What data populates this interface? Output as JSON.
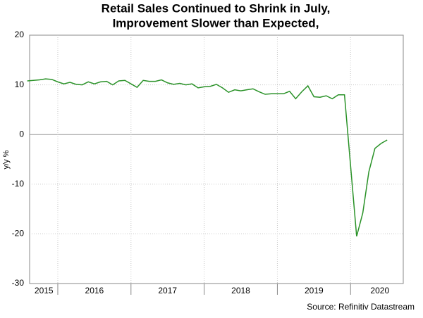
{
  "chart_data": {
    "type": "line",
    "title_lines": [
      "Retail Sales Continued to Shrink in July,",
      "Improvement Slower than Expected,"
    ],
    "ylabel": "y/y %",
    "source": "Source: Refinitiv Datastream",
    "color": "#2a9228",
    "x": [
      2015.583,
      2015.667,
      2015.75,
      2015.833,
      2015.917,
      2016.0,
      2016.083,
      2016.167,
      2016.25,
      2016.333,
      2016.417,
      2016.5,
      2016.583,
      2016.667,
      2016.75,
      2016.833,
      2016.917,
      2017.0,
      2017.083,
      2017.167,
      2017.25,
      2017.333,
      2017.417,
      2017.5,
      2017.583,
      2017.667,
      2017.75,
      2017.833,
      2017.917,
      2018.0,
      2018.083,
      2018.167,
      2018.25,
      2018.333,
      2018.417,
      2018.5,
      2018.583,
      2018.667,
      2018.75,
      2018.833,
      2018.917,
      2019.0,
      2019.083,
      2019.167,
      2019.25,
      2019.333,
      2019.417,
      2019.5,
      2019.583,
      2019.667,
      2019.75,
      2019.833,
      2019.917,
      2020.083,
      2020.167,
      2020.25,
      2020.333,
      2020.417,
      2020.5
    ],
    "values": [
      10.8,
      10.9,
      11.0,
      11.2,
      11.1,
      10.6,
      10.2,
      10.5,
      10.1,
      10.0,
      10.6,
      10.2,
      10.6,
      10.7,
      10.0,
      10.8,
      10.9,
      10.2,
      9.5,
      10.9,
      10.7,
      10.7,
      11.0,
      10.4,
      10.1,
      10.3,
      10.0,
      10.2,
      9.4,
      9.6,
      9.7,
      10.1,
      9.4,
      8.5,
      9.0,
      8.8,
      9.0,
      9.2,
      8.6,
      8.1,
      8.2,
      8.2,
      8.2,
      8.7,
      7.2,
      8.6,
      9.8,
      7.6,
      7.5,
      7.8,
      7.2,
      8.0,
      8.0,
      -20.5,
      -15.8,
      -7.5,
      -2.8,
      -1.8,
      -1.1
    ],
    "xlim": [
      2015.615,
      2020.72
    ],
    "xticks": [
      2016,
      2017,
      2018,
      2019,
      2020
    ],
    "xtick_labels": [
      {
        "value": 2015.81,
        "label": "2015"
      },
      {
        "value": 2016.5,
        "label": "2016"
      },
      {
        "value": 2017.5,
        "label": "2017"
      },
      {
        "value": 2018.5,
        "label": "2018"
      },
      {
        "value": 2019.5,
        "label": "2019"
      },
      {
        "value": 2020.4,
        "label": "2020"
      }
    ],
    "ylim": [
      -30,
      20
    ],
    "yticks": [
      -30,
      -20,
      -10,
      0,
      10,
      20
    ],
    "grid": true
  }
}
